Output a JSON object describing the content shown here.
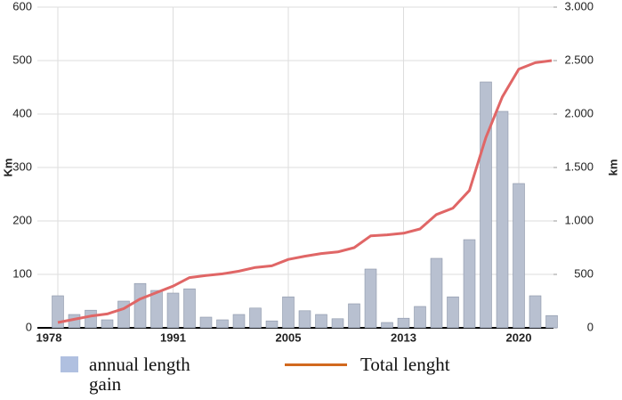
{
  "chart_data": {
    "type": "bar-line",
    "y_label": "Km",
    "y2_label": "km",
    "categories": [
      "1978",
      null,
      null,
      null,
      null,
      null,
      null,
      "1991",
      null,
      null,
      null,
      null,
      null,
      null,
      "2005",
      null,
      null,
      null,
      null,
      null,
      null,
      "2013",
      null,
      null,
      null,
      null,
      null,
      null,
      "2020",
      null,
      null
    ],
    "series": [
      {
        "name": "annual length gain",
        "type": "bar",
        "color": "#b8c0d0",
        "values": [
          60,
          25,
          33,
          15,
          50,
          83,
          70,
          65,
          73,
          20,
          15,
          25,
          37,
          13,
          58,
          32,
          25,
          17,
          45,
          110,
          10,
          18,
          40,
          130,
          58,
          165,
          460,
          405,
          270,
          60,
          23
        ]
      },
      {
        "name": "Total lenght",
        "type": "line",
        "axis": "y2",
        "color": "#e06666",
        "values": [
          50,
          80,
          110,
          130,
          180,
          270,
          330,
          390,
          470,
          490,
          505,
          530,
          565,
          580,
          640,
          670,
          695,
          710,
          750,
          860,
          870,
          885,
          925,
          1060,
          1120,
          1285,
          1780,
          2160,
          2420,
          2480,
          2500
        ]
      }
    ],
    "ylim": [
      0,
      600
    ],
    "yticks": [
      0,
      100,
      200,
      300,
      400,
      500,
      600
    ],
    "y2lim": [
      0,
      3000
    ],
    "y2ticks": [
      0,
      500,
      {
        "value": 1000,
        "label": "1.000"
      },
      {
        "value": 1500,
        "label": "1.500"
      },
      {
        "value": 2000,
        "label": "2.000"
      },
      {
        "value": 2500,
        "label": "2.500"
      },
      {
        "value": 3000,
        "label": "3.000"
      }
    ],
    "grid": true
  }
}
